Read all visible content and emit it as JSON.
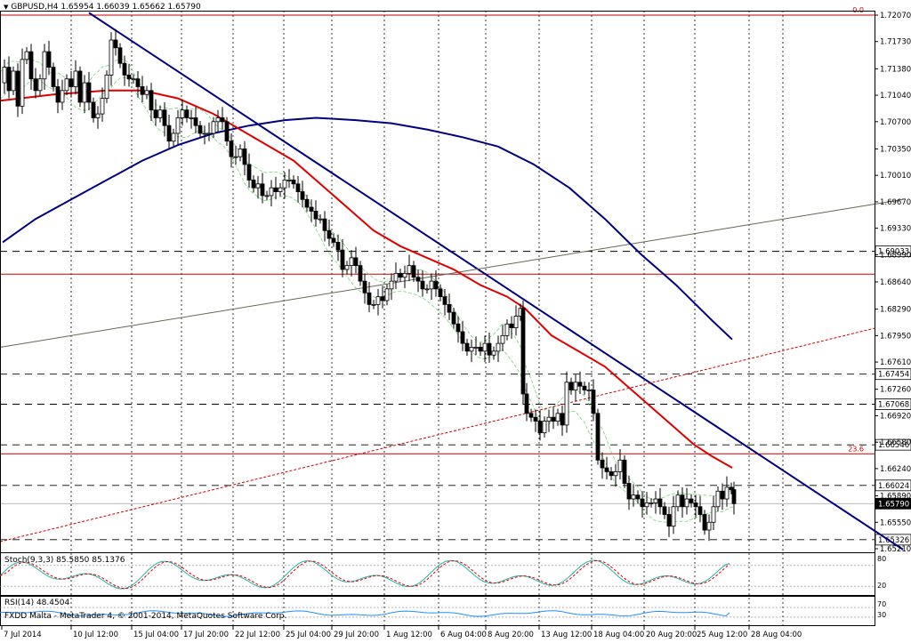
{
  "header": {
    "symbol_title": "GBPUSD,H4",
    "ohlc": "1.65954 1.66039 1.65662 1.65790"
  },
  "stoch_panel": {
    "label": "Stoch(9,3,3) 85.5850 85.1376",
    "levels": [
      "80",
      "20"
    ]
  },
  "rsi_panel": {
    "label": "RSI(14) 48.4504",
    "levels": [
      "70",
      "30"
    ]
  },
  "footer": {
    "broker": "FXDD Malta - MetaTrader 4, © 2001-2014, MetaQuotes Software Corp."
  },
  "colors": {
    "background": "#ffffff",
    "candle": "#000000",
    "ma_fast": "#e00000",
    "ma_slow": "#000080",
    "trendline": "#000080",
    "red_level": "#cc0000",
    "dashed_level": "#000000",
    "envelope": "#66cc66",
    "channel": "#666655",
    "stoch_main": "#20b2aa",
    "stoch_signal": "#e00000",
    "rsi": "#1e90ff"
  },
  "chart_data": {
    "type": "candlestick",
    "symbol": "GBPUSD",
    "timeframe": "H4",
    "last_price": 1.6579,
    "y_ticks": [
      "1.72070",
      "1.71730",
      "1.71380",
      "1.71040",
      "1.70700",
      "1.70350",
      "1.70010",
      "1.69670",
      "1.69330",
      "1.68990",
      "1.68640",
      "1.68290",
      "1.67950",
      "1.67610",
      "1.67260",
      "1.66920",
      "1.66580",
      "1.66240",
      "1.65890",
      "1.65550",
      "1.65210"
    ],
    "ylim": [
      1.6521,
      1.7207
    ],
    "x_ticks": [
      "7 Jul 2014",
      "10 Jul 12:00",
      "15 Jul 04:00",
      "17 Jul 20:00",
      "22 Jul 12:00",
      "25 Jul 04:00",
      "29 Jul 20:00",
      "1 Aug 12:00",
      "6 Aug 04:00",
      "8 Aug 20:00",
      "13 Aug 12:00",
      "18 Aug 04:00",
      "20 Aug 20:00",
      "25 Aug 12:00",
      "28 Aug 04:00"
    ],
    "fibo_levels": [
      {
        "label": "0.0",
        "price": 1.7207
      },
      {
        "label": "23.6",
        "price": 1.6643
      }
    ],
    "horizontal_levels": [
      {
        "price": 1.69033,
        "label": "1.69033",
        "style": "dashed"
      },
      {
        "price": 1.6874,
        "label": "",
        "style": "solid-red"
      },
      {
        "price": 1.67454,
        "label": "1.67454",
        "style": "dashed"
      },
      {
        "price": 1.67068,
        "label": "1.67068",
        "style": "dashed"
      },
      {
        "price": 1.66546,
        "label": "1.66546",
        "style": "dashed"
      },
      {
        "price": 1.66024,
        "label": "1.66024",
        "style": "dashed"
      },
      {
        "price": 1.6579,
        "label": "1.65790",
        "style": "current"
      },
      {
        "price": 1.65326,
        "label": "1.65326",
        "style": "dashed"
      }
    ],
    "close_path": [
      [
        0,
        1.712
      ],
      [
        5,
        1.714
      ],
      [
        10,
        1.711
      ],
      [
        15,
        1.7135
      ],
      [
        20,
        1.709
      ],
      [
        25,
        1.715
      ],
      [
        30,
        1.716
      ],
      [
        35,
        1.7125
      ],
      [
        40,
        1.711
      ],
      [
        45,
        1.7125
      ],
      [
        50,
        1.716
      ],
      [
        55,
        1.714
      ],
      [
        60,
        1.7115
      ],
      [
        65,
        1.7095
      ],
      [
        70,
        1.711
      ],
      [
        75,
        1.7125
      ],
      [
        80,
        1.7115
      ],
      [
        85,
        1.7135
      ],
      [
        90,
        1.7095
      ],
      [
        95,
        1.712
      ],
      [
        100,
        1.7095
      ],
      [
        105,
        1.7075
      ],
      [
        110,
        1.708
      ],
      [
        115,
        1.71
      ],
      [
        120,
        1.713
      ],
      [
        125,
        1.7175
      ],
      [
        130,
        1.7165
      ],
      [
        135,
        1.7145
      ],
      [
        140,
        1.713
      ],
      [
        145,
        1.7125
      ],
      [
        150,
        1.7125
      ],
      [
        155,
        1.7115
      ],
      [
        160,
        1.7105
      ],
      [
        165,
        1.711
      ],
      [
        170,
        1.7085
      ],
      [
        175,
        1.7075
      ],
      [
        180,
        1.7085
      ],
      [
        185,
        1.7065
      ],
      [
        190,
        1.7045
      ],
      [
        195,
        1.7055
      ],
      [
        200,
        1.7075
      ],
      [
        205,
        1.7085
      ],
      [
        210,
        1.7075
      ],
      [
        215,
        1.7075
      ],
      [
        220,
        1.7065
      ],
      [
        225,
        1.7055
      ],
      [
        230,
        1.7055
      ],
      [
        235,
        1.7055
      ],
      [
        240,
        1.707
      ],
      [
        245,
        1.7075
      ],
      [
        250,
        1.707
      ],
      [
        255,
        1.7045
      ],
      [
        260,
        1.7025
      ],
      [
        265,
        1.7025
      ],
      [
        270,
        1.7035
      ],
      [
        275,
        1.7015
      ],
      [
        280,
        1.6995
      ],
      [
        285,
        1.6985
      ],
      [
        290,
        1.699
      ],
      [
        295,
        1.6975
      ],
      [
        300,
        1.6975
      ],
      [
        305,
        1.6985
      ],
      [
        310,
        1.698
      ],
      [
        315,
        1.6985
      ],
      [
        320,
        1.6995
      ],
      [
        325,
        1.6995
      ],
      [
        330,
        1.699
      ],
      [
        335,
        1.698
      ],
      [
        340,
        1.697
      ],
      [
        345,
        1.696
      ],
      [
        350,
        1.6955
      ],
      [
        355,
        1.6945
      ],
      [
        360,
        1.6945
      ],
      [
        365,
        1.693
      ],
      [
        370,
        1.692
      ],
      [
        375,
        1.6915
      ],
      [
        380,
        1.6905
      ],
      [
        385,
        1.688
      ],
      [
        390,
        1.6885
      ],
      [
        395,
        1.6895
      ],
      [
        400,
        1.6885
      ],
      [
        405,
        1.6865
      ],
      [
        410,
        1.685
      ],
      [
        415,
        1.6835
      ],
      [
        420,
        1.6835
      ],
      [
        425,
        1.6845
      ],
      [
        430,
        1.684
      ],
      [
        435,
        1.6855
      ],
      [
        440,
        1.6865
      ],
      [
        445,
        1.6875
      ],
      [
        450,
        1.687
      ],
      [
        455,
        1.6875
      ],
      [
        460,
        1.6885
      ],
      [
        465,
        1.687
      ],
      [
        470,
        1.6865
      ],
      [
        475,
        1.6855
      ],
      [
        480,
        1.6855
      ],
      [
        485,
        1.6865
      ],
      [
        490,
        1.6855
      ],
      [
        495,
        1.6845
      ],
      [
        500,
        1.6835
      ],
      [
        505,
        1.6825
      ],
      [
        510,
        1.681
      ],
      [
        515,
        1.68
      ],
      [
        520,
        1.6785
      ],
      [
        525,
        1.6775
      ],
      [
        530,
        1.678
      ],
      [
        535,
        1.678
      ],
      [
        540,
        1.6775
      ],
      [
        545,
        1.6785
      ],
      [
        550,
        1.677
      ],
      [
        555,
        1.6775
      ],
      [
        560,
        1.6785
      ],
      [
        565,
        1.6795
      ],
      [
        570,
        1.681
      ],
      [
        575,
        1.6805
      ],
      [
        580,
        1.682
      ],
      [
        585,
        1.683
      ],
      [
        588,
        1.672
      ],
      [
        592,
        1.6695
      ],
      [
        597,
        1.669
      ],
      [
        602,
        1.6685
      ],
      [
        607,
        1.667
      ],
      [
        612,
        1.6685
      ],
      [
        617,
        1.669
      ],
      [
        622,
        1.6685
      ],
      [
        627,
        1.6695
      ],
      [
        632,
        1.668
      ],
      [
        637,
        1.6735
      ],
      [
        642,
        1.6725
      ],
      [
        647,
        1.6735
      ],
      [
        652,
        1.673
      ],
      [
        657,
        1.6725
      ],
      [
        662,
        1.6725
      ],
      [
        667,
        1.6695
      ],
      [
        672,
        1.6635
      ],
      [
        677,
        1.6625
      ],
      [
        682,
        1.662
      ],
      [
        687,
        1.6615
      ],
      [
        692,
        1.662
      ],
      [
        697,
        1.6635
      ],
      [
        702,
        1.6605
      ],
      [
        707,
        1.6585
      ],
      [
        712,
        1.659
      ],
      [
        717,
        1.6585
      ],
      [
        722,
        1.6575
      ],
      [
        727,
        1.658
      ],
      [
        732,
        1.658
      ],
      [
        737,
        1.6585
      ],
      [
        742,
        1.6575
      ],
      [
        747,
        1.6565
      ],
      [
        752,
        1.655
      ],
      [
        757,
        1.6575
      ],
      [
        762,
        1.659
      ],
      [
        767,
        1.6575
      ],
      [
        772,
        1.6585
      ],
      [
        777,
        1.658
      ],
      [
        782,
        1.6575
      ],
      [
        787,
        1.6565
      ],
      [
        792,
        1.6545
      ],
      [
        797,
        1.6555
      ],
      [
        802,
        1.6575
      ],
      [
        807,
        1.6595
      ],
      [
        812,
        1.6585
      ],
      [
        817,
        1.66
      ],
      [
        822,
        1.6597
      ],
      [
        825,
        1.6579
      ]
    ],
    "ma_fast": [
      [
        0,
        1.7097
      ],
      [
        60,
        1.7105
      ],
      [
        120,
        1.711
      ],
      [
        160,
        1.711
      ],
      [
        200,
        1.71
      ],
      [
        240,
        1.708
      ],
      [
        270,
        1.706
      ],
      [
        300,
        1.704
      ],
      [
        330,
        1.702
      ],
      [
        360,
        1.699
      ],
      [
        390,
        1.696
      ],
      [
        420,
        1.693
      ],
      [
        450,
        1.691
      ],
      [
        480,
        1.6895
      ],
      [
        510,
        1.688
      ],
      [
        540,
        1.686
      ],
      [
        570,
        1.6845
      ],
      [
        590,
        1.683
      ],
      [
        620,
        1.6795
      ],
      [
        650,
        1.6775
      ],
      [
        680,
        1.6755
      ],
      [
        700,
        1.6735
      ],
      [
        720,
        1.6715
      ],
      [
        740,
        1.6695
      ],
      [
        760,
        1.6675
      ],
      [
        780,
        1.6655
      ],
      [
        800,
        1.664
      ],
      [
        823,
        1.6625
      ]
    ],
    "ma_slow": [
      [
        3,
        1.6915
      ],
      [
        40,
        1.6945
      ],
      [
        80,
        1.697
      ],
      [
        120,
        1.6995
      ],
      [
        160,
        1.702
      ],
      [
        200,
        1.704
      ],
      [
        240,
        1.7055
      ],
      [
        280,
        1.7065
      ],
      [
        320,
        1.7072
      ],
      [
        355,
        1.7075
      ],
      [
        400,
        1.7072
      ],
      [
        440,
        1.7068
      ],
      [
        480,
        1.706
      ],
      [
        520,
        1.705
      ],
      [
        560,
        1.7038
      ],
      [
        600,
        1.7015
      ],
      [
        640,
        1.6985
      ],
      [
        680,
        1.6945
      ],
      [
        720,
        1.69
      ],
      [
        760,
        1.686
      ],
      [
        800,
        1.6815
      ],
      [
        823,
        1.679
      ]
    ],
    "trendlines": [
      {
        "from": [
          100,
          1.721
        ],
        "to": [
          1015,
          1.652
        ],
        "color": "#000080"
      },
      {
        "from": [
          0,
          1.678
        ],
        "to": [
          1015,
          1.697
        ],
        "color": "#666655"
      },
      {
        "from": [
          0,
          1.653
        ],
        "to": [
          985,
          1.6805
        ],
        "color": "#cc0000"
      }
    ],
    "stoch": {
      "main": 85.585,
      "signal": 85.1376,
      "levels": [
        80,
        20
      ]
    },
    "rsi": {
      "value": 48.4504,
      "levels": [
        70,
        30
      ]
    }
  }
}
